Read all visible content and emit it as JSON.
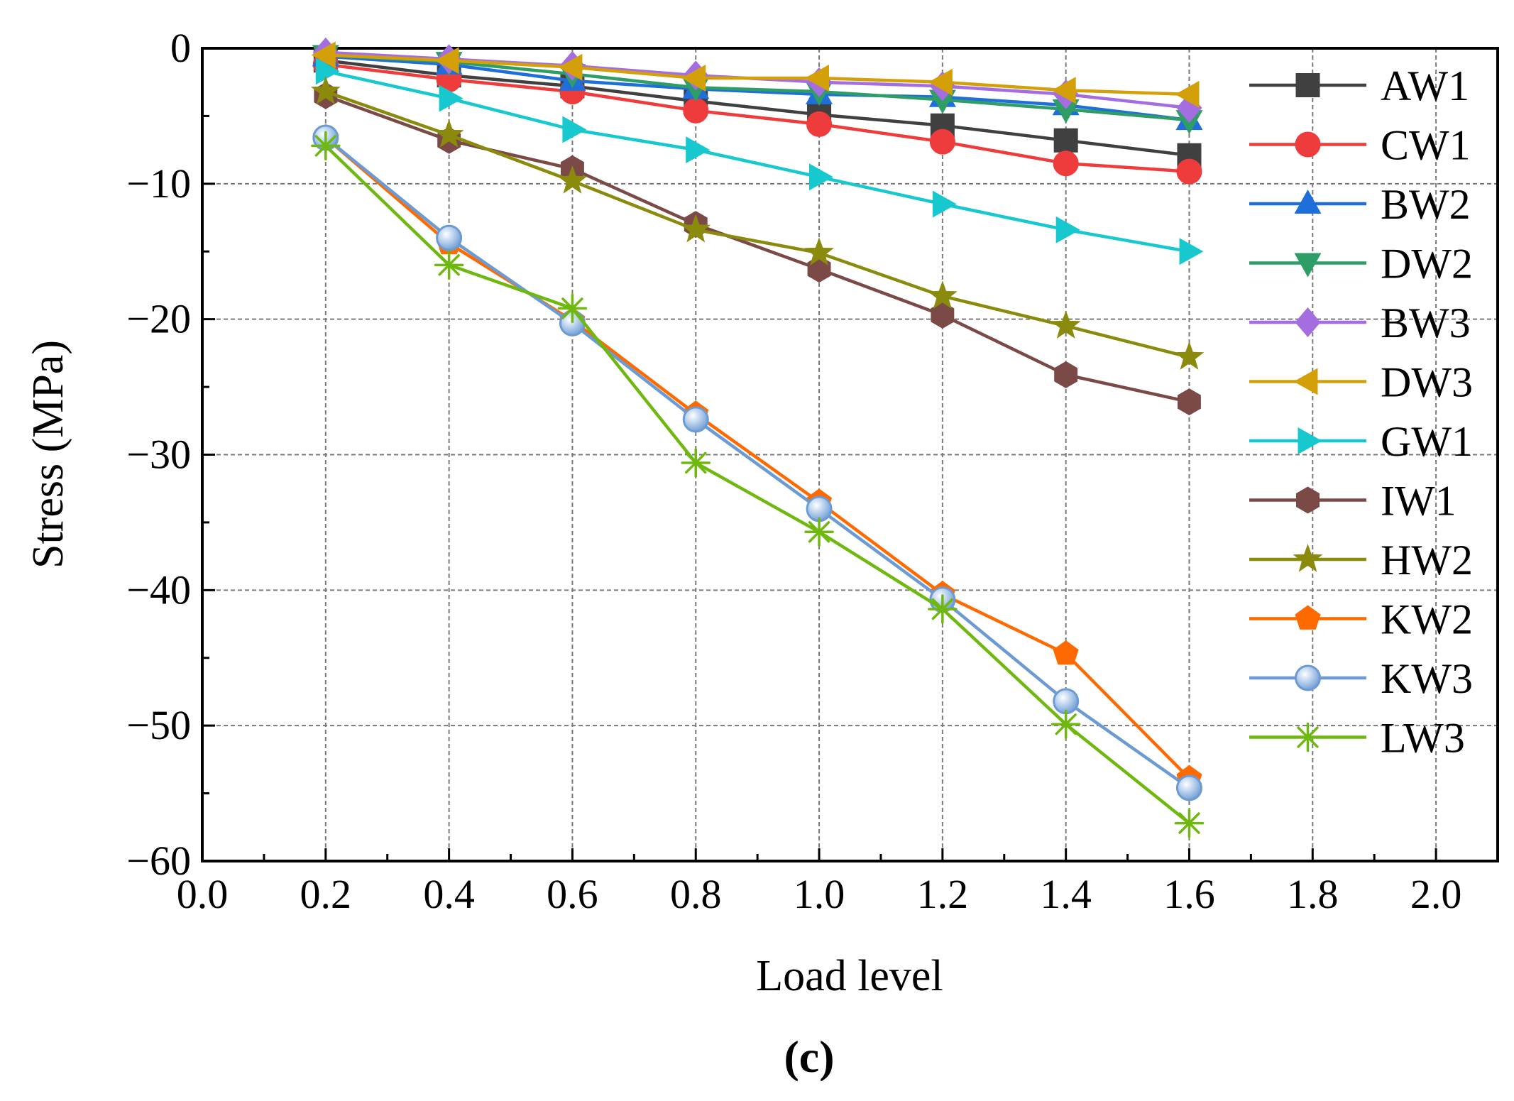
{
  "chart_data": {
    "type": "line",
    "title": "",
    "xlabel": "Load level",
    "ylabel": "Stress (MPa)",
    "caption": "(c)",
    "xlim": [
      0.0,
      2.1
    ],
    "ylim": [
      -60,
      0
    ],
    "x_ticks": [
      0.0,
      0.2,
      0.4,
      0.6,
      0.8,
      1.0,
      1.2,
      1.4,
      1.6,
      1.8,
      2.0
    ],
    "x_tick_labels": [
      "0.0",
      "0.2",
      "0.4",
      "0.6",
      "0.8",
      "1.0",
      "1.2",
      "1.4",
      "1.6",
      "1.8",
      "2.0"
    ],
    "y_ticks": [
      0,
      -10,
      -20,
      -30,
      -40,
      -50,
      -60
    ],
    "y_tick_labels": [
      "0",
      "−10",
      "−20",
      "−30",
      "−40",
      "−50",
      "−60"
    ],
    "grid": true,
    "legend_position": "right",
    "x": [
      0.2,
      0.4,
      0.6,
      0.8,
      1.0,
      1.2,
      1.4,
      1.6
    ],
    "series": [
      {
        "name": "AW1",
        "color": "#404040",
        "marker": "square",
        "values": [
          -0.9,
          -2.0,
          -2.8,
          -3.9,
          -4.9,
          -5.7,
          -6.8,
          -7.9
        ]
      },
      {
        "name": "CW1",
        "color": "#ee3b3b",
        "marker": "circle",
        "values": [
          -1.2,
          -2.3,
          -3.2,
          -4.6,
          -5.6,
          -6.9,
          -8.5,
          -9.1
        ]
      },
      {
        "name": "BW2",
        "color": "#1f6fdb",
        "marker": "triangle-up",
        "values": [
          -0.6,
          -1.2,
          -2.4,
          -3.0,
          -3.4,
          -3.6,
          -4.2,
          -5.3
        ]
      },
      {
        "name": "DW2",
        "color": "#2e9d66",
        "marker": "triangle-down",
        "values": [
          -0.5,
          -1.0,
          -1.9,
          -2.9,
          -3.2,
          -3.8,
          -4.5,
          -5.3
        ]
      },
      {
        "name": "BW3",
        "color": "#a46ee0",
        "marker": "diamond",
        "values": [
          -0.3,
          -0.8,
          -1.3,
          -2.0,
          -2.5,
          -2.8,
          -3.4,
          -4.4
        ]
      },
      {
        "name": "DW3",
        "color": "#d4a009",
        "marker": "triangle-left",
        "values": [
          -0.5,
          -0.9,
          -1.4,
          -2.2,
          -2.2,
          -2.5,
          -3.1,
          -3.4
        ]
      },
      {
        "name": "GW1",
        "color": "#17c8cf",
        "marker": "triangle-right",
        "values": [
          -1.7,
          -3.7,
          -6.0,
          -7.5,
          -9.5,
          -11.5,
          -13.4,
          -15.0
        ]
      },
      {
        "name": "IW1",
        "color": "#7b4a47",
        "marker": "hexagon",
        "values": [
          -3.5,
          -6.8,
          -8.9,
          -13.0,
          -16.3,
          -19.7,
          -24.1,
          -26.1
        ]
      },
      {
        "name": "HW2",
        "color": "#8a8a0d",
        "marker": "star",
        "values": [
          -3.2,
          -6.4,
          -9.8,
          -13.4,
          -15.1,
          -18.3,
          -20.5,
          -22.8
        ]
      },
      {
        "name": "KW2",
        "color": "#ff6a00",
        "marker": "pentagon",
        "values": [
          -6.6,
          -14.4,
          -20.1,
          -27.0,
          -33.5,
          -40.3,
          -44.7,
          -53.9
        ]
      },
      {
        "name": "KW3",
        "color": "#6b9bd2",
        "marker": "sphere",
        "values": [
          -6.6,
          -14.0,
          -20.3,
          -27.4,
          -34.0,
          -40.7,
          -48.2,
          -54.6
        ]
      },
      {
        "name": "LW3",
        "color": "#6eb80f",
        "marker": "asterisk",
        "values": [
          -7.2,
          -16.0,
          -19.2,
          -30.6,
          -35.7,
          -41.4,
          -49.9,
          -57.2
        ]
      }
    ]
  }
}
